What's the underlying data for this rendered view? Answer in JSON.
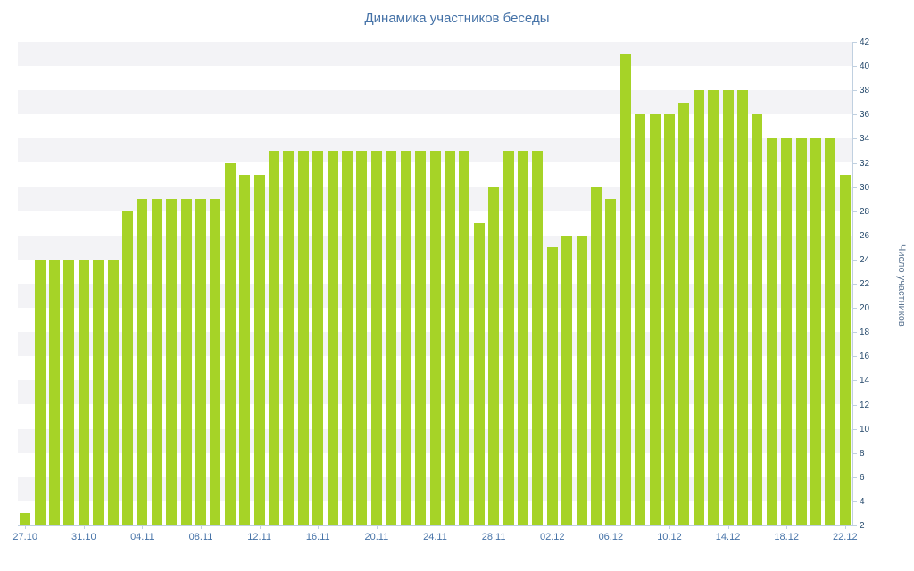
{
  "chart_data": {
    "type": "bar",
    "title": "Динамика участников беседы",
    "ylabel": "Число участников",
    "xlabel": "",
    "ylim": [
      2,
      42
    ],
    "y_tick_interval": 2,
    "x_tick_labels": [
      "27.10",
      "31.10",
      "04.11",
      "08.11",
      "12.11",
      "16.11",
      "20.11",
      "24.11",
      "28.11",
      "02.12",
      "06.12",
      "10.12",
      "14.12",
      "18.12",
      "22.12"
    ],
    "x_tick_every": 4,
    "values": [
      3,
      24,
      24,
      24,
      24,
      24,
      24,
      28,
      29,
      29,
      29,
      29,
      29,
      29,
      32,
      31,
      31,
      33,
      33,
      33,
      33,
      33,
      33,
      33,
      33,
      33,
      33,
      33,
      33,
      33,
      33,
      27,
      30,
      33,
      33,
      33,
      25,
      26,
      26,
      30,
      29,
      41,
      36,
      36,
      36,
      37,
      38,
      38,
      38,
      38,
      36,
      34,
      34,
      34,
      34,
      34,
      31
    ],
    "legend": "none",
    "grid": "alternating-horizontal-bands",
    "colors": {
      "bar": "#a6d327",
      "title": "#4572a7",
      "x_label": "#4572a7",
      "y_label": "#274b6d",
      "y_title": "#5e7793",
      "axis_line": "#c0d0e0",
      "band": "#f3f3f6",
      "background": "#ffffff"
    }
  }
}
